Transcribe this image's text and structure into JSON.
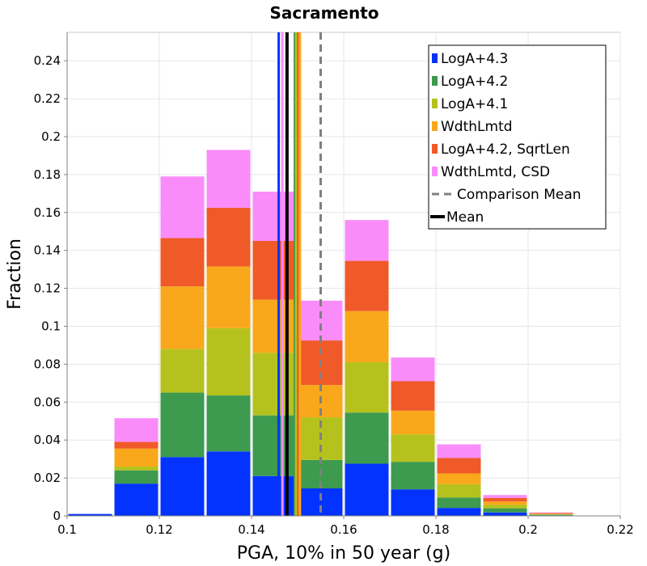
{
  "chart_data": {
    "type": "bar",
    "stacked": true,
    "title": "Sacramento",
    "xlabel": "PGA, 10% in 50 year (g)",
    "ylabel": "Fraction",
    "xlim": [
      0.1,
      0.22
    ],
    "ylim": [
      0,
      0.255
    ],
    "xticks": [
      0.1,
      0.12,
      0.14,
      0.16,
      0.18,
      0.2,
      0.22
    ],
    "xtick_labels": [
      "0.1",
      "0.12",
      "0.14",
      "0.16",
      "0.18",
      "0.2",
      "0.22"
    ],
    "yticks": [
      0,
      0.02,
      0.04,
      0.06,
      0.08,
      0.1,
      0.12,
      0.14,
      0.16,
      0.18,
      0.2,
      0.22,
      0.24
    ],
    "ytick_labels": [
      "0",
      "0.02",
      "0.04",
      "0.06",
      "0.08",
      "0.1",
      "0.12",
      "0.14",
      "0.16",
      "0.18",
      "0.2",
      "0.22",
      "0.24"
    ],
    "grid": true,
    "legend_position": "top-right",
    "bins": [
      {
        "x0": 0.1,
        "x1": 0.11
      },
      {
        "x0": 0.11,
        "x1": 0.12
      },
      {
        "x0": 0.12,
        "x1": 0.13
      },
      {
        "x0": 0.13,
        "x1": 0.14
      },
      {
        "x0": 0.14,
        "x1": 0.15
      },
      {
        "x0": 0.15,
        "x1": 0.16
      },
      {
        "x0": 0.16,
        "x1": 0.17
      },
      {
        "x0": 0.17,
        "x1": 0.18
      },
      {
        "x0": 0.18,
        "x1": 0.19
      },
      {
        "x0": 0.19,
        "x1": 0.2
      },
      {
        "x0": 0.2,
        "x1": 0.21
      }
    ],
    "series": [
      {
        "name": "LogA+4.3",
        "color": "#0433ff",
        "values": [
          0.001,
          0.017,
          0.031,
          0.034,
          0.021,
          0.0145,
          0.0275,
          0.014,
          0.0042,
          0.0018,
          0.0003
        ]
      },
      {
        "name": "LogA+4.2",
        "color": "#3d9a4f",
        "values": [
          0,
          0.007,
          0.034,
          0.0295,
          0.032,
          0.015,
          0.027,
          0.0145,
          0.0055,
          0.0022,
          0.0003
        ]
      },
      {
        "name": "LogA+4.1",
        "color": "#b5c21d",
        "values": [
          0,
          0.002,
          0.023,
          0.0355,
          0.033,
          0.0225,
          0.0265,
          0.0145,
          0.007,
          0.0018,
          0.0003
        ]
      },
      {
        "name": "WdthLmtd",
        "color": "#f9a81b",
        "values": [
          0,
          0.0095,
          0.033,
          0.0325,
          0.028,
          0.017,
          0.027,
          0.0125,
          0.0057,
          0.0018,
          0.0003
        ]
      },
      {
        "name": "LogA+4.2, SqrtLen",
        "color": "#f05a28",
        "values": [
          0,
          0.0035,
          0.0255,
          0.031,
          0.031,
          0.0235,
          0.0265,
          0.0155,
          0.0081,
          0.0019,
          0.0003
        ]
      },
      {
        "name": "WdthLmtd, CSD",
        "color": "#fa8cfa",
        "values": [
          0,
          0.0125,
          0.0325,
          0.0305,
          0.026,
          0.021,
          0.0215,
          0.0125,
          0.0072,
          0.0015,
          0.0003
        ]
      }
    ],
    "vertical_lines": [
      {
        "name": "LogA+4.3",
        "x": 0.1459,
        "color": "#0433ff",
        "style": "solid",
        "in_legend": false
      },
      {
        "name": "WdthLmtd, CSD",
        "x": 0.1467,
        "color": "#fa8cfa",
        "style": "solid",
        "in_legend": false
      },
      {
        "name": "Mean",
        "x": 0.1477,
        "color": "#000000",
        "style": "solid",
        "in_legend": true
      },
      {
        "name": "LogA+4.2",
        "x": 0.1494,
        "color": "#3d9a4f",
        "style": "solid",
        "in_legend": false
      },
      {
        "name": "LogA+4.1",
        "x": 0.1497,
        "color": "#b5c21d",
        "style": "solid",
        "in_legend": false
      },
      {
        "name": "LogA+4.2, SqrtLen",
        "x": 0.1501,
        "color": "#f05a28",
        "style": "solid",
        "in_legend": false
      },
      {
        "name": "WdthLmtd",
        "x": 0.1505,
        "color": "#f9a81b",
        "style": "solid",
        "in_legend": false
      },
      {
        "name": "Comparison Mean",
        "x": 0.155,
        "color": "#808080",
        "style": "dashed",
        "in_legend": true
      }
    ],
    "legend": [
      {
        "label": "LogA+4.3",
        "color": "#0433ff",
        "kind": "box"
      },
      {
        "label": "LogA+4.2",
        "color": "#3d9a4f",
        "kind": "box"
      },
      {
        "label": "LogA+4.1",
        "color": "#b5c21d",
        "kind": "box"
      },
      {
        "label": "WdthLmtd",
        "color": "#f9a81b",
        "kind": "box"
      },
      {
        "label": "LogA+4.2, SqrtLen",
        "color": "#f05a28",
        "kind": "box"
      },
      {
        "label": "WdthLmtd, CSD",
        "color": "#fa8cfa",
        "kind": "box"
      },
      {
        "label": "Comparison Mean",
        "color": "#808080",
        "kind": "dashed"
      },
      {
        "label": "Mean",
        "color": "#000000",
        "kind": "line"
      }
    ]
  }
}
